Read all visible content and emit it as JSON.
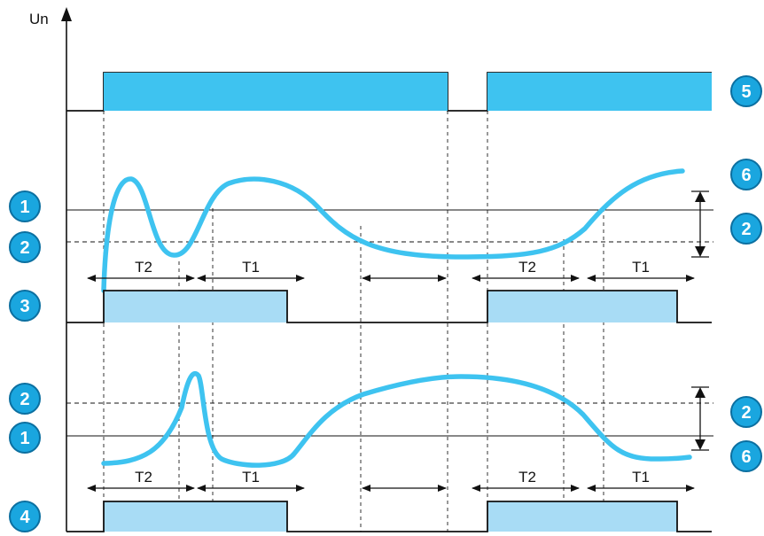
{
  "axis": {
    "y_label": "Un"
  },
  "timing_labels": {
    "upper": [
      "T2",
      "T1",
      "T2",
      "T1"
    ],
    "lower": [
      "T2",
      "T1",
      "T2",
      "T1"
    ]
  },
  "badges": {
    "left": [
      "1",
      "2",
      "3",
      "2",
      "1",
      "4"
    ],
    "right": [
      "5",
      "6",
      "2",
      "2",
      "6"
    ]
  },
  "colors": {
    "supply_fill": "#3ec3f0",
    "curve": "#3ec3f0",
    "output_fill": "#a8dcf5",
    "badge_fill": "#1aa6df",
    "line": "#111111"
  }
}
